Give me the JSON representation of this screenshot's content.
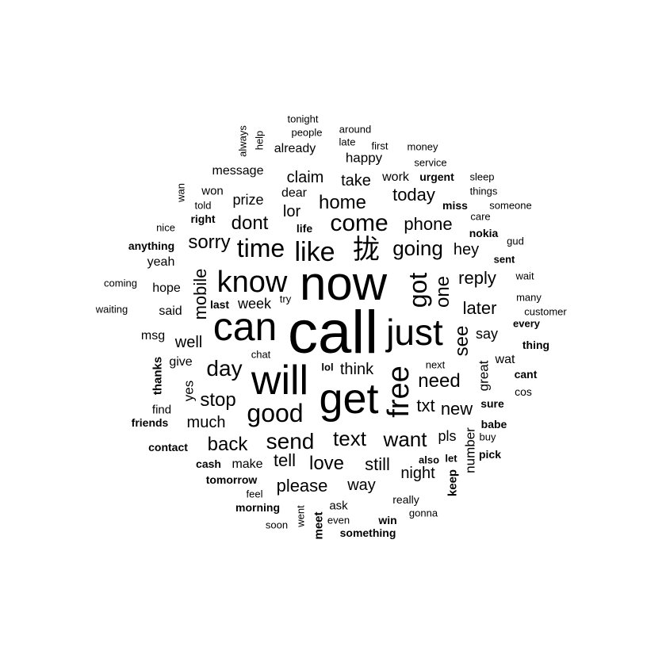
{
  "wordcloud": {
    "words": [
      {
        "text": "call",
        "rotated": false,
        "bold": false
      },
      {
        "text": "now",
        "rotated": false,
        "bold": false
      },
      {
        "text": "can",
        "rotated": false,
        "bold": false
      },
      {
        "text": "get",
        "rotated": false,
        "bold": false
      },
      {
        "text": "will",
        "rotated": false,
        "bold": false
      },
      {
        "text": "just",
        "rotated": false,
        "bold": false
      },
      {
        "text": "know",
        "rotated": false,
        "bold": false
      },
      {
        "text": "free",
        "rotated": true,
        "bold": false
      },
      {
        "text": "got",
        "rotated": true,
        "bold": false
      },
      {
        "text": "like",
        "rotated": false,
        "bold": false
      },
      {
        "text": "good",
        "rotated": false,
        "bold": false
      },
      {
        "text": "time",
        "rotated": false,
        "bold": false
      },
      {
        "text": "come",
        "rotated": false,
        "bold": false
      },
      {
        "text": "day",
        "rotated": false,
        "bold": false
      },
      {
        "text": "send",
        "rotated": false,
        "bold": false
      },
      {
        "text": "going",
        "rotated": false,
        "bold": false
      },
      {
        "text": "text",
        "rotated": false,
        "bold": false
      },
      {
        "text": "want",
        "rotated": false,
        "bold": false
      },
      {
        "text": "need",
        "rotated": false,
        "bold": false
      },
      {
        "text": "home",
        "rotated": false,
        "bold": false
      },
      {
        "text": "see",
        "rotated": true,
        "bold": false
      },
      {
        "text": "one",
        "rotated": true,
        "bold": false
      },
      {
        "text": "mobile",
        "rotated": true,
        "bold": false
      },
      {
        "text": "love",
        "rotated": false,
        "bold": false
      },
      {
        "text": "back",
        "rotated": false,
        "bold": false
      },
      {
        "text": "stop",
        "rotated": false,
        "bold": false
      },
      {
        "text": "dont",
        "rotated": false,
        "bold": false
      },
      {
        "text": "sorry",
        "rotated": false,
        "bold": false
      },
      {
        "text": "phone",
        "rotated": false,
        "bold": false
      },
      {
        "text": "today",
        "rotated": false,
        "bold": false
      },
      {
        "text": "reply",
        "rotated": false,
        "bold": false
      },
      {
        "text": "later",
        "rotated": false,
        "bold": false
      },
      {
        "text": "still",
        "rotated": false,
        "bold": false
      },
      {
        "text": "please",
        "rotated": false,
        "bold": false
      },
      {
        "text": "tell",
        "rotated": false,
        "bold": false
      },
      {
        "text": "txt",
        "rotated": false,
        "bold": false
      },
      {
        "text": "new",
        "rotated": false,
        "bold": false
      },
      {
        "text": "think",
        "rotated": false,
        "bold": false
      },
      {
        "text": "take",
        "rotated": false,
        "bold": false
      },
      {
        "text": "lor",
        "rotated": false,
        "bold": false
      },
      {
        "text": "claim",
        "rotated": false,
        "bold": false
      },
      {
        "text": "hey",
        "rotated": false,
        "bold": false
      },
      {
        "text": "night",
        "rotated": false,
        "bold": false
      },
      {
        "text": "way",
        "rotated": false,
        "bold": false
      },
      {
        "text": "much",
        "rotated": false,
        "bold": false
      },
      {
        "text": "well",
        "rotated": false,
        "bold": false
      },
      {
        "text": "week",
        "rotated": false,
        "bold": false
      },
      {
        "text": "prize",
        "rotated": false,
        "bold": false
      },
      {
        "text": "say",
        "rotated": false,
        "bold": false
      },
      {
        "text": "great",
        "rotated": true,
        "bold": false
      },
      {
        "text": "number",
        "rotated": true,
        "bold": false
      },
      {
        "text": "yes",
        "rotated": true,
        "bold": false
      },
      {
        "text": "thanks",
        "rotated": true,
        "bold": true
      },
      {
        "text": "keep",
        "rotated": true,
        "bold": true
      },
      {
        "text": "meet",
        "rotated": true,
        "bold": true
      },
      {
        "text": "lol",
        "rotated": false,
        "bold": true
      },
      {
        "text": "pls",
        "rotated": false,
        "bold": false
      },
      {
        "text": "work",
        "rotated": false,
        "bold": false
      },
      {
        "text": "dear",
        "rotated": false,
        "bold": false
      },
      {
        "text": "message",
        "rotated": false,
        "bold": false
      },
      {
        "text": "happy",
        "rotated": false,
        "bold": false
      },
      {
        "text": "already",
        "rotated": false,
        "bold": false
      },
      {
        "text": "won",
        "rotated": false,
        "bold": false
      },
      {
        "text": "urgent",
        "rotated": false,
        "bold": true
      },
      {
        "text": "miss",
        "rotated": false,
        "bold": true
      },
      {
        "text": "nokia",
        "rotated": false,
        "bold": true
      },
      {
        "text": "right",
        "rotated": false,
        "bold": true
      },
      {
        "text": "life",
        "rotated": false,
        "bold": true
      },
      {
        "text": "anything",
        "rotated": false,
        "bold": true
      },
      {
        "text": "yeah",
        "rotated": false,
        "bold": false
      },
      {
        "text": "hope",
        "rotated": false,
        "bold": false
      },
      {
        "text": "said",
        "rotated": false,
        "bold": false
      },
      {
        "text": "last",
        "rotated": false,
        "bold": true
      },
      {
        "text": "msg",
        "rotated": false,
        "bold": false
      },
      {
        "text": "give",
        "rotated": false,
        "bold": false
      },
      {
        "text": "find",
        "rotated": false,
        "bold": false
      },
      {
        "text": "friends",
        "rotated": false,
        "bold": true
      },
      {
        "text": "contact",
        "rotated": false,
        "bold": true
      },
      {
        "text": "cash",
        "rotated": false,
        "bold": true
      },
      {
        "text": "make",
        "rotated": false,
        "bold": false
      },
      {
        "text": "tomorrow",
        "rotated": false,
        "bold": true
      },
      {
        "text": "morning",
        "rotated": false,
        "bold": true
      },
      {
        "text": "ask",
        "rotated": false,
        "bold": false
      },
      {
        "text": "something",
        "rotated": false,
        "bold": true
      },
      {
        "text": "win",
        "rotated": false,
        "bold": true
      },
      {
        "text": "really",
        "rotated": false,
        "bold": false
      },
      {
        "text": "also",
        "rotated": false,
        "bold": true
      },
      {
        "text": "let",
        "rotated": false,
        "bold": true
      },
      {
        "text": "pick",
        "rotated": false,
        "bold": true
      },
      {
        "text": "babe",
        "rotated": false,
        "bold": true
      },
      {
        "text": "sure",
        "rotated": false,
        "bold": true
      },
      {
        "text": "wat",
        "rotated": false,
        "bold": false
      },
      {
        "text": "cant",
        "rotated": false,
        "bold": true
      },
      {
        "text": "cos",
        "rotated": false,
        "bold": false
      },
      {
        "text": "thing",
        "rotated": false,
        "bold": true
      },
      {
        "text": "every",
        "rotated": false,
        "bold": true
      },
      {
        "text": "sent",
        "rotated": false,
        "bold": true
      },
      {
        "text": "chat",
        "rotated": false,
        "bold": false
      },
      {
        "text": "try",
        "rotated": false,
        "bold": false
      },
      {
        "text": "next",
        "rotated": false,
        "bold": false
      },
      {
        "text": "buy",
        "rotated": false,
        "bold": false
      },
      {
        "text": "feel",
        "rotated": false,
        "bold": false
      },
      {
        "text": "soon",
        "rotated": false,
        "bold": false
      },
      {
        "text": "went",
        "rotated": true,
        "bold": false
      },
      {
        "text": "even",
        "rotated": false,
        "bold": false
      },
      {
        "text": "gonna",
        "rotated": false,
        "bold": false
      },
      {
        "text": "many",
        "rotated": false,
        "bold": false
      },
      {
        "text": "customer",
        "rotated": false,
        "bold": false
      },
      {
        "text": "wait",
        "rotated": false,
        "bold": false
      },
      {
        "text": "gud",
        "rotated": false,
        "bold": false
      },
      {
        "text": "care",
        "rotated": false,
        "bold": false
      },
      {
        "text": "someone",
        "rotated": false,
        "bold": false
      },
      {
        "text": "things",
        "rotated": false,
        "bold": false
      },
      {
        "text": "sleep",
        "rotated": false,
        "bold": false
      },
      {
        "text": "service",
        "rotated": false,
        "bold": false
      },
      {
        "text": "money",
        "rotated": false,
        "bold": false
      },
      {
        "text": "first",
        "rotated": false,
        "bold": false
      },
      {
        "text": "late",
        "rotated": false,
        "bold": false
      },
      {
        "text": "around",
        "rotated": false,
        "bold": false
      },
      {
        "text": "people",
        "rotated": false,
        "bold": false
      },
      {
        "text": "tonight",
        "rotated": false,
        "bold": false
      },
      {
        "text": "help",
        "rotated": true,
        "bold": false
      },
      {
        "text": "always",
        "rotated": true,
        "bold": false
      },
      {
        "text": "wan",
        "rotated": true,
        "bold": false
      },
      {
        "text": "told",
        "rotated": false,
        "bold": false
      },
      {
        "text": "nice",
        "rotated": false,
        "bold": false
      },
      {
        "text": "coming",
        "rotated": false,
        "bold": false
      },
      {
        "text": "waiting",
        "rotated": false,
        "bold": false
      },
      {
        "text": "拢",
        "rotated": false,
        "bold": false
      }
    ]
  }
}
